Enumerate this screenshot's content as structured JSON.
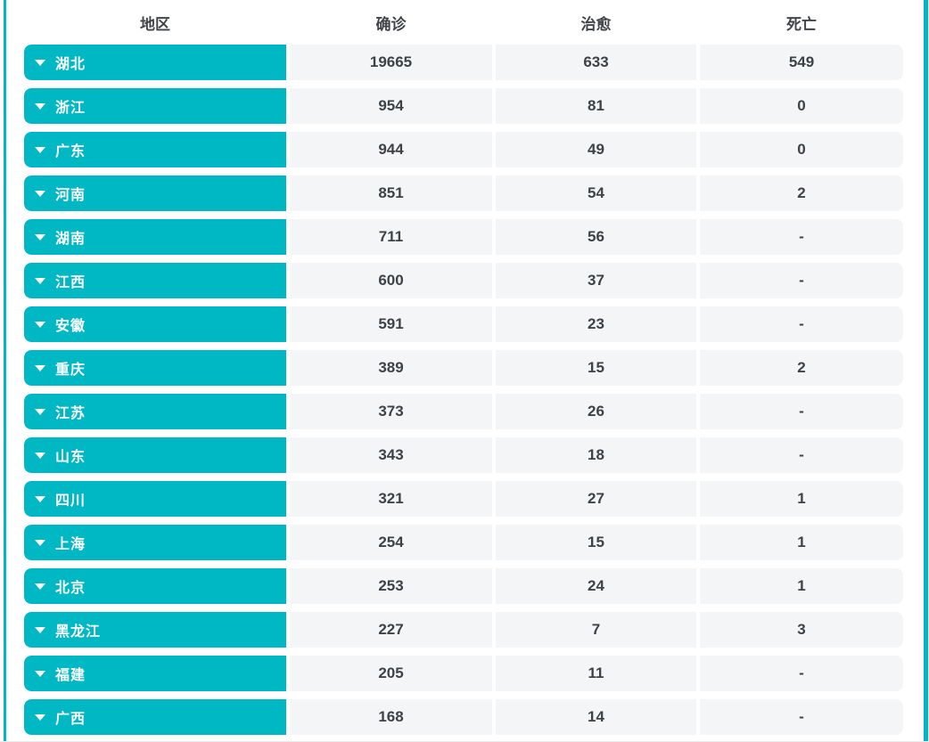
{
  "table": {
    "columns": [
      {
        "key": "region",
        "label": "地区"
      },
      {
        "key": "confirmed",
        "label": "确诊"
      },
      {
        "key": "cured",
        "label": "治愈"
      },
      {
        "key": "dead",
        "label": "死亡"
      }
    ],
    "rows": [
      {
        "region": "湖北",
        "confirmed": "19665",
        "cured": "633",
        "dead": "549"
      },
      {
        "region": "浙江",
        "confirmed": "954",
        "cured": "81",
        "dead": "0"
      },
      {
        "region": "广东",
        "confirmed": "944",
        "cured": "49",
        "dead": "0"
      },
      {
        "region": "河南",
        "confirmed": "851",
        "cured": "54",
        "dead": "2"
      },
      {
        "region": "湖南",
        "confirmed": "711",
        "cured": "56",
        "dead": "-"
      },
      {
        "region": "江西",
        "confirmed": "600",
        "cured": "37",
        "dead": "-"
      },
      {
        "region": "安徽",
        "confirmed": "591",
        "cured": "23",
        "dead": "-"
      },
      {
        "region": "重庆",
        "confirmed": "389",
        "cured": "15",
        "dead": "2"
      },
      {
        "region": "江苏",
        "confirmed": "373",
        "cured": "26",
        "dead": "-"
      },
      {
        "region": "山东",
        "confirmed": "343",
        "cured": "18",
        "dead": "-"
      },
      {
        "region": "四川",
        "confirmed": "321",
        "cured": "27",
        "dead": "1"
      },
      {
        "region": "上海",
        "confirmed": "254",
        "cured": "15",
        "dead": "1"
      },
      {
        "region": "北京",
        "confirmed": "253",
        "cured": "24",
        "dead": "1"
      },
      {
        "region": "黑龙江",
        "confirmed": "227",
        "cured": "7",
        "dead": "3"
      },
      {
        "region": "福建",
        "confirmed": "205",
        "cured": "11",
        "dead": "-"
      },
      {
        "region": "广西",
        "confirmed": "168",
        "cured": "14",
        "dead": "-"
      }
    ]
  },
  "icons": {
    "region_toggle": "caret-down-icon"
  },
  "colors": {
    "accent": "#00b7c4",
    "cell_bg": "#f4f5f7",
    "text_dark": "#3d4247"
  }
}
